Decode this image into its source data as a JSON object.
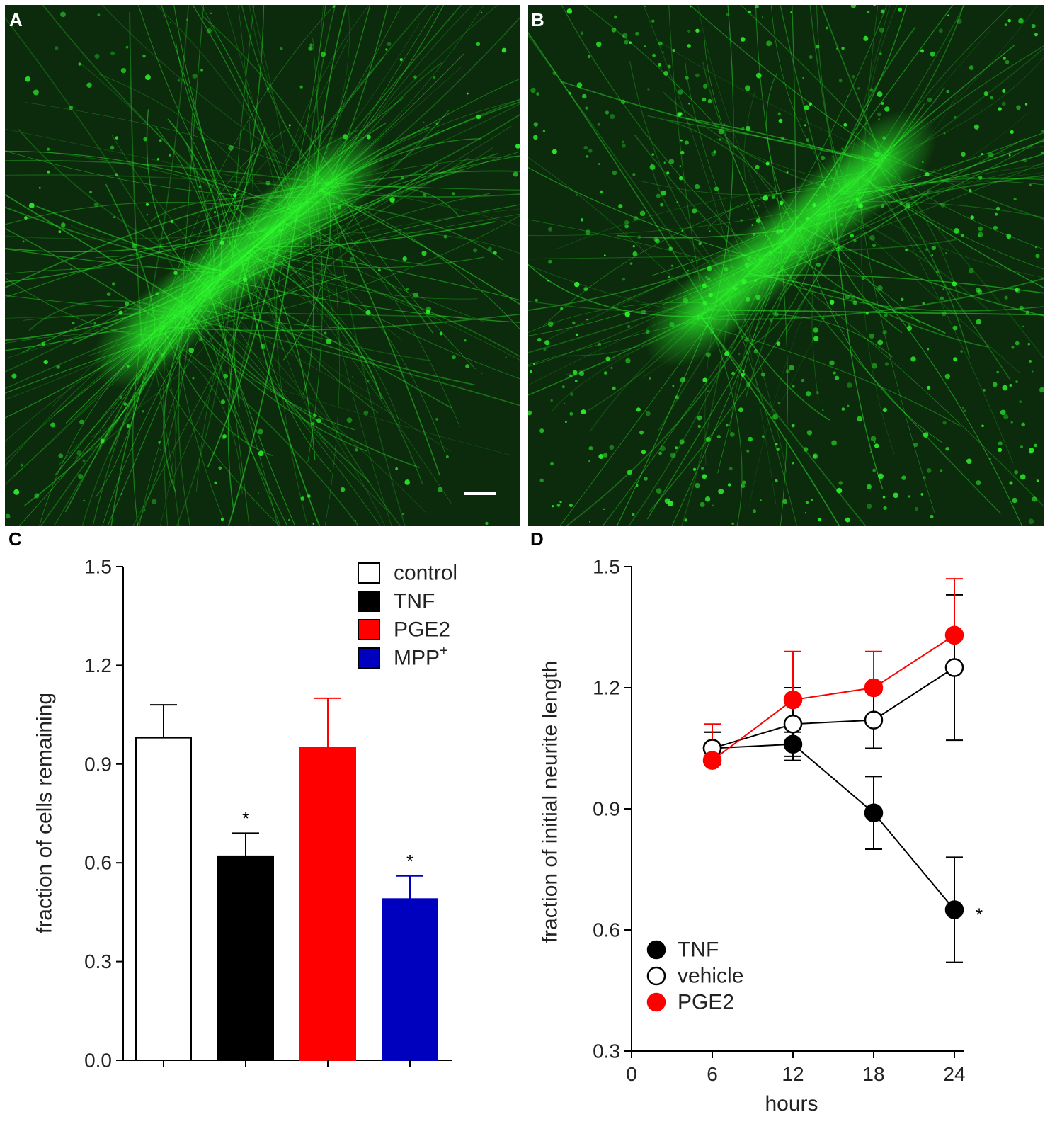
{
  "panels": {
    "a": {
      "label": "A"
    },
    "b": {
      "label": "B"
    },
    "c": {
      "label": "C"
    },
    "d": {
      "label": "D"
    }
  },
  "micrographs": {
    "background": "#0c2a0c",
    "fluorescence": "#2dff2d"
  },
  "chart_data": [
    {
      "panel": "C",
      "type": "bar",
      "ylabel": "fraction of cells remaining",
      "xlabel": "",
      "ylim": [
        0.0,
        1.5
      ],
      "yticks": [
        "0.0",
        "0.3",
        "0.6",
        "0.9",
        "1.2",
        "1.5"
      ],
      "categories": [
        "control",
        "TNF",
        "PGE2",
        "MPP+"
      ],
      "legend": {
        "position": "top-right",
        "items": [
          {
            "text": "control",
            "sup": "",
            "fill": "#ffffff"
          },
          {
            "text": "TNF",
            "sup": "",
            "fill": "#000000"
          },
          {
            "text": "PGE2",
            "sup": "",
            "fill": "#ff0000"
          },
          {
            "text": "MPP",
            "sup": "+",
            "fill": "#0000bf"
          }
        ]
      },
      "values": [
        0.98,
        0.62,
        0.95,
        0.49
      ],
      "errors": [
        0.1,
        0.07,
        0.15,
        0.07
      ],
      "colors": [
        "#ffffff",
        "#000000",
        "#ff0000",
        "#0000bf"
      ],
      "annotations": [
        "",
        "*",
        "",
        "*"
      ]
    },
    {
      "panel": "D",
      "type": "line",
      "xlabel": "hours",
      "ylabel": "fraction of initial neurite length",
      "xlim": [
        0,
        24
      ],
      "ylim": [
        0.3,
        1.5
      ],
      "xticks": [
        "0",
        "6",
        "12",
        "18",
        "24"
      ],
      "yticks": [
        "0.3",
        "0.6",
        "0.9",
        "1.2",
        "1.5"
      ],
      "legend": {
        "position": "bottom-left"
      },
      "series": [
        {
          "name": "TNF",
          "x": [
            6,
            12,
            18,
            24
          ],
          "y": [
            1.05,
            1.06,
            0.89,
            0.65
          ],
          "err": [
            0.04,
            0.03,
            0.09,
            0.13
          ],
          "marker": "#000000",
          "line": "#000000",
          "errside": "both",
          "annotation": "*"
        },
        {
          "name": "vehicle",
          "x": [
            6,
            12,
            18,
            24
          ],
          "y": [
            1.05,
            1.11,
            1.12,
            1.25
          ],
          "err": [
            0.04,
            0.09,
            0.07,
            0.18
          ],
          "marker": "#ffffff",
          "line": "#000000",
          "errside": "both",
          "annotation": ""
        },
        {
          "name": "PGE2",
          "x": [
            6,
            12,
            18,
            24
          ],
          "y": [
            1.02,
            1.17,
            1.2,
            1.33
          ],
          "err": [
            0.09,
            0.12,
            0.09,
            0.14
          ],
          "marker": "#ff0000",
          "line": "#ff0000",
          "errside": "up",
          "annotation": ""
        }
      ]
    }
  ]
}
